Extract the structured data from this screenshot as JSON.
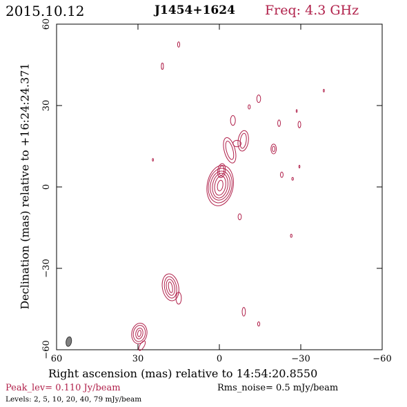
{
  "header": {
    "date": "2015.10.12",
    "source": "J1454+1624",
    "freq": "Freq: 4.3 GHz"
  },
  "footer": {
    "peak": "Peak_lev=  0.110 Jy/beam",
    "rms": "Rms_noise=  0.5 mJy/beam",
    "levels": "Levels:  2,  5,  10,  20,  40,  79 mJy/beam"
  },
  "colors": {
    "contour": "#b0204a",
    "beam": "#808080"
  },
  "chart_data": {
    "type": "contour",
    "xlabel": "Right ascension (mas) relative to 14:54:20.8550",
    "ylabel": "Declination (mas) relative to +16:24:24.371",
    "xlim": [
      60,
      -60
    ],
    "ylim": [
      -60,
      60
    ],
    "xticks": [
      60,
      30,
      0,
      -30,
      -60
    ],
    "yticks": [
      60,
      30,
      0,
      -30,
      -60
    ],
    "contour_levels_mJy_per_beam": [
      2,
      5,
      10,
      20,
      40,
      79
    ],
    "peak_Jy_per_beam": 0.11,
    "rms_mJy_per_beam": 0.5,
    "components": [
      {
        "x": -0.3,
        "y": 0.5,
        "rx": [
          1.0,
          2.0,
          2.8,
          3.6,
          4.3,
          4.8
        ],
        "ry": [
          2.0,
          3.6,
          4.6,
          5.4,
          6.4,
          7.5
        ],
        "rot": 10
      },
      {
        "x": -0.8,
        "y": 6.0,
        "rx": [
          0.9,
          1.4
        ],
        "ry": [
          1.8,
          2.6
        ],
        "rot": 8
      },
      {
        "x": 18.0,
        "y": -37.0,
        "rx": [
          0.7,
          1.5,
          2.2,
          3.0
        ],
        "ry": [
          2.0,
          3.0,
          4.0,
          5.0
        ],
        "rot": -10
      },
      {
        "x": 15.0,
        "y": -41.0,
        "rx": [
          1.0
        ],
        "ry": [
          2.2
        ],
        "rot": 0
      },
      {
        "x": 29.5,
        "y": -54.0,
        "rx": [
          0.6,
          1.3,
          2.2,
          2.8
        ],
        "ry": [
          1.2,
          2.0,
          3.0,
          3.8
        ],
        "rot": 10
      },
      {
        "x": 28.5,
        "y": -58.5,
        "rx": [
          0.8
        ],
        "ry": [
          2.0
        ],
        "rot": 30
      },
      {
        "x": -3.8,
        "y": 13.5,
        "rx": [
          1.2,
          2.0
        ],
        "ry": [
          3.5,
          4.8
        ],
        "rot": -15
      },
      {
        "x": -8.8,
        "y": 17.0,
        "rx": [
          1.1,
          1.9
        ],
        "ry": [
          2.8,
          3.8
        ],
        "rot": 8
      },
      {
        "x": -6.5,
        "y": 16.0,
        "rx": [
          1.5
        ],
        "ry": [
          1.2
        ],
        "rot": 0
      },
      {
        "x": -5.0,
        "y": 24.5,
        "rx": [
          0.9
        ],
        "ry": [
          1.8
        ],
        "rot": 0
      },
      {
        "x": -20.0,
        "y": 14.0,
        "rx": [
          0.5,
          1.0
        ],
        "ry": [
          1.0,
          1.8
        ],
        "rot": 0
      },
      {
        "x": -14.5,
        "y": 32.5,
        "rx": [
          0.7
        ],
        "ry": [
          1.4
        ],
        "rot": 0
      },
      {
        "x": -11.0,
        "y": 29.5,
        "rx": [
          0.4
        ],
        "ry": [
          0.8
        ],
        "rot": 0
      },
      {
        "x": -22.0,
        "y": 23.5,
        "rx": [
          0.5
        ],
        "ry": [
          1.2
        ],
        "rot": 0
      },
      {
        "x": -29.5,
        "y": 23.0,
        "rx": [
          0.5
        ],
        "ry": [
          1.2
        ],
        "rot": 0
      },
      {
        "x": -28.5,
        "y": 28.0,
        "rx": [
          0.2
        ],
        "ry": [
          0.5
        ],
        "rot": 0
      },
      {
        "x": -38.5,
        "y": 35.5,
        "rx": [
          0.2
        ],
        "ry": [
          0.5
        ],
        "rot": 0
      },
      {
        "x": -23.0,
        "y": 4.5,
        "rx": [
          0.5
        ],
        "ry": [
          1.0
        ],
        "rot": 0
      },
      {
        "x": -27.0,
        "y": 3.0,
        "rx": [
          0.3
        ],
        "ry": [
          0.5
        ],
        "rot": 0
      },
      {
        "x": -29.5,
        "y": 7.5,
        "rx": [
          0.2
        ],
        "ry": [
          0.5
        ],
        "rot": 0
      },
      {
        "x": -7.5,
        "y": -11.0,
        "rx": [
          0.6
        ],
        "ry": [
          1.1
        ],
        "rot": 0
      },
      {
        "x": -26.5,
        "y": -18.0,
        "rx": [
          0.3
        ],
        "ry": [
          0.6
        ],
        "rot": 0
      },
      {
        "x": -9.0,
        "y": -46.0,
        "rx": [
          0.6
        ],
        "ry": [
          1.6
        ],
        "rot": 0
      },
      {
        "x": -14.5,
        "y": -50.5,
        "rx": [
          0.4
        ],
        "ry": [
          0.8
        ],
        "rot": 0
      },
      {
        "x": 21.0,
        "y": 44.5,
        "rx": [
          0.4
        ],
        "ry": [
          1.2
        ],
        "rot": 0
      },
      {
        "x": 15.0,
        "y": 52.5,
        "rx": [
          0.4
        ],
        "ry": [
          1.0
        ],
        "rot": 0
      },
      {
        "x": 24.5,
        "y": 10.0,
        "rx": [
          0.2
        ],
        "ry": [
          0.5
        ],
        "rot": 0
      }
    ],
    "beam": {
      "x": 55.5,
      "y": -57.0,
      "rx": 1.0,
      "ry": 1.8,
      "rot": 10
    }
  }
}
